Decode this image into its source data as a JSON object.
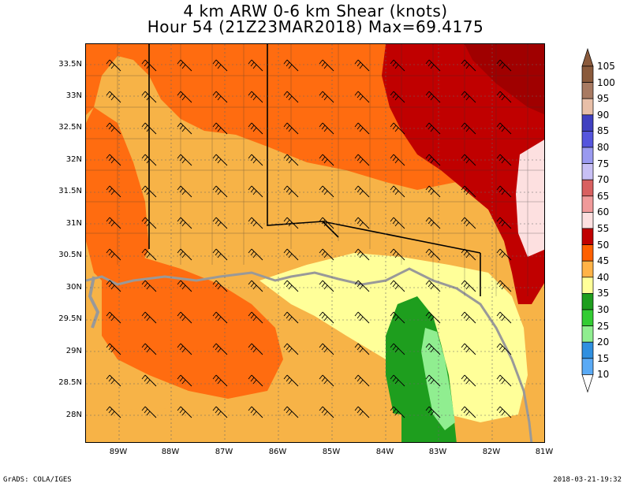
{
  "title": {
    "line1": "4 km ARW 0-6 km Shear (knots)",
    "line2": "Hour 54 (21Z23MAR2018) Max=69.4175"
  },
  "map": {
    "lat_labels": [
      "33.5N",
      "33N",
      "32.5N",
      "32N",
      "31.5N",
      "31N",
      "30.5N",
      "30N",
      "29.5N",
      "29N",
      "28.5N",
      "28N"
    ],
    "lon_labels": [
      "89W",
      "88W",
      "87W",
      "86W",
      "85W",
      "84W",
      "83W",
      "82W",
      "81W"
    ],
    "colorbar": {
      "labels": [
        "105",
        "100",
        "95",
        "90",
        "85",
        "80",
        "75",
        "70",
        "65",
        "60",
        "55",
        "50",
        "45",
        "40",
        "35",
        "30",
        "25",
        "20",
        "15",
        "10"
      ],
      "colors": [
        "#8a5a3c",
        "#a87a62",
        "#e8bfa8",
        "#4040c0",
        "#5555dd",
        "#9a9af0",
        "#c8c0f5",
        "#d86060",
        "#f09a9a",
        "#fde0e0",
        "#c00000",
        "#ff6000",
        "#ffb347",
        "#ffff99",
        "#1e9e1e",
        "#33cc33",
        "#90ee90",
        "#2f8fe0",
        "#5aaaf5",
        "#8ec5f5"
      ]
    }
  },
  "footer": {
    "left": "GrADS: COLA/IGES",
    "right": "2018-03-21-19:32"
  }
}
